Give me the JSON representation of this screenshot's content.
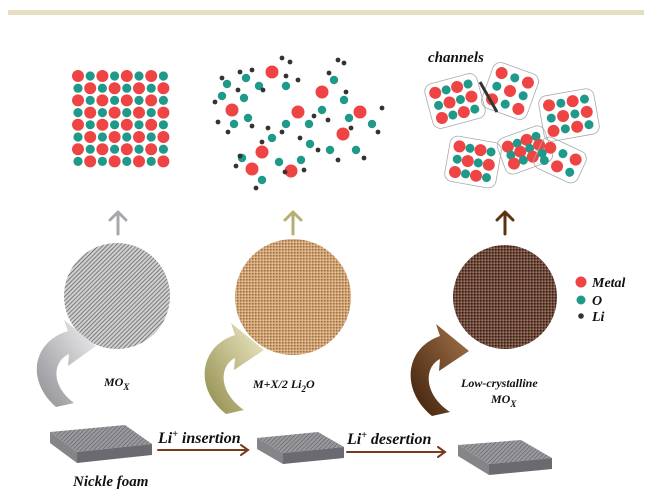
{
  "colors": {
    "top_rule": "#e6dfc3",
    "metal": "#ee4444",
    "oxygen": "#1f9a8a",
    "lithium": "#333333",
    "arrow_gray": "#a8a8ac",
    "arrow_olive": "#b6ae72",
    "arrow_brown": "#5c3310",
    "arrow_line": "#7a3a1c"
  },
  "labels": {
    "channels": "channels",
    "stage1": "MO",
    "stage1_sub": "X",
    "stage2_a": "M+X/2 Li",
    "stage2_sub": "2",
    "stage2_b": "O",
    "stage3_line1": "Low-crystalline",
    "stage3_line2": "MO",
    "stage3_sub": "X",
    "insertion_a": "Li",
    "insertion_sup": "+",
    "insertion_b": " insertion",
    "desertion_a": "Li",
    "desertion_sup": "+",
    "desertion_b": " desertion",
    "substrate": "Nickle foam"
  },
  "legend": [
    {
      "label": "Metal",
      "color": "#ee4444",
      "icon": "red-dot-icon"
    },
    {
      "label": "O",
      "color": "#1f9a8a",
      "icon": "teal-dot-icon"
    },
    {
      "label": "Li",
      "color": "#333333",
      "icon": "black-dot-icon"
    }
  ]
}
